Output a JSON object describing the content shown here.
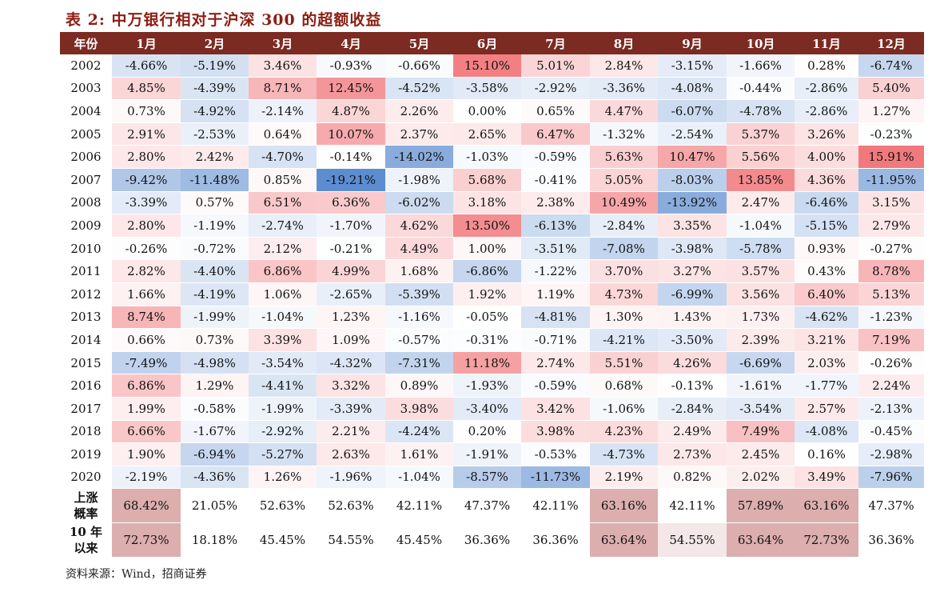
{
  "title": "表 2:  中万银行相对于沪深 300 的超额收益",
  "source": "资料来源：Wind，招商证券",
  "header": [
    "年份",
    "1月",
    "2月",
    "3月",
    "4月",
    "5月",
    "6月",
    "7月",
    "8月",
    "9月",
    "10月",
    "11月",
    "12月"
  ],
  "rows": [
    {
      "year": "2002",
      "values": [
        "-4.66%",
        "-5.19%",
        "3.46%",
        "-0.93%",
        "-0.66%",
        "15.10%",
        "5.01%",
        "2.84%",
        "-3.15%",
        "-1.66%",
        "0.28%",
        "-6.74%"
      ]
    },
    {
      "year": "2003",
      "values": [
        "4.85%",
        "-4.39%",
        "8.71%",
        "12.45%",
        "-4.52%",
        "-3.58%",
        "-2.92%",
        "-3.36%",
        "-4.08%",
        "-0.44%",
        "-2.86%",
        "5.40%"
      ]
    },
    {
      "year": "2004",
      "values": [
        "0.73%",
        "-4.92%",
        "-2.14%",
        "4.87%",
        "2.26%",
        "0.00%",
        "0.65%",
        "4.47%",
        "-6.07%",
        "-4.78%",
        "-2.86%",
        "1.27%"
      ]
    },
    {
      "year": "2005",
      "values": [
        "2.91%",
        "-2.53%",
        "0.64%",
        "10.07%",
        "2.37%",
        "2.65%",
        "6.47%",
        "-1.32%",
        "-2.54%",
        "5.37%",
        "3.26%",
        "-0.23%"
      ]
    },
    {
      "year": "2006",
      "values": [
        "2.80%",
        "2.42%",
        "-4.70%",
        "-0.14%",
        "-14.02%",
        "-1.03%",
        "-0.59%",
        "5.63%",
        "10.47%",
        "5.56%",
        "4.00%",
        "15.91%"
      ]
    },
    {
      "year": "2007",
      "values": [
        "-9.42%",
        "-11.48%",
        "0.85%",
        "-19.21%",
        "-1.98%",
        "5.68%",
        "-0.41%",
        "5.05%",
        "-8.03%",
        "13.85%",
        "4.36%",
        "-11.95%"
      ]
    },
    {
      "year": "2008",
      "values": [
        "-3.39%",
        "0.57%",
        "6.51%",
        "6.36%",
        "-6.02%",
        "3.18%",
        "2.38%",
        "10.49%",
        "-13.92%",
        "2.47%",
        "-6.46%",
        "3.15%"
      ]
    },
    {
      "year": "2009",
      "values": [
        "2.80%",
        "-1.19%",
        "-2.74%",
        "-1.70%",
        "4.62%",
        "13.50%",
        "-6.13%",
        "-2.84%",
        "3.35%",
        "-1.04%",
        "-5.15%",
        "2.79%"
      ]
    },
    {
      "year": "2010",
      "values": [
        "-0.26%",
        "-0.72%",
        "2.12%",
        "-0.21%",
        "4.49%",
        "1.00%",
        "-3.51%",
        "-7.08%",
        "-3.98%",
        "-5.78%",
        "0.93%",
        "-0.27%"
      ]
    },
    {
      "year": "2011",
      "values": [
        "2.82%",
        "-4.40%",
        "6.86%",
        "4.99%",
        "1.68%",
        "-6.86%",
        "-1.22%",
        "3.70%",
        "3.27%",
        "3.57%",
        "0.43%",
        "8.78%"
      ]
    },
    {
      "year": "2012",
      "values": [
        "1.66%",
        "-4.19%",
        "1.06%",
        "-2.65%",
        "-5.39%",
        "1.92%",
        "1.19%",
        "4.73%",
        "-6.99%",
        "3.56%",
        "6.40%",
        "5.13%"
      ]
    },
    {
      "year": "2013",
      "values": [
        "8.74%",
        "-1.99%",
        "-1.04%",
        "1.23%",
        "-1.16%",
        "-0.05%",
        "-4.81%",
        "1.30%",
        "1.43%",
        "1.73%",
        "-4.62%",
        "-1.23%"
      ]
    },
    {
      "year": "2014",
      "values": [
        "0.66%",
        "0.73%",
        "3.39%",
        "1.09%",
        "-0.57%",
        "-0.31%",
        "-0.71%",
        "-4.21%",
        "-3.50%",
        "2.39%",
        "3.21%",
        "7.19%"
      ]
    },
    {
      "year": "2015",
      "values": [
        "-7.49%",
        "-4.98%",
        "-3.54%",
        "-4.32%",
        "-7.31%",
        "11.18%",
        "2.74%",
        "5.51%",
        "4.26%",
        "-6.69%",
        "2.03%",
        "-0.26%"
      ]
    },
    {
      "year": "2016",
      "values": [
        "6.86%",
        "1.29%",
        "-4.41%",
        "3.32%",
        "0.89%",
        "-1.93%",
        "-0.59%",
        "0.68%",
        "-0.13%",
        "-1.61%",
        "-1.77%",
        "2.24%"
      ]
    },
    {
      "year": "2017",
      "values": [
        "1.99%",
        "-0.58%",
        "-1.99%",
        "-3.39%",
        "3.98%",
        "-3.40%",
        "3.42%",
        "-1.06%",
        "-2.84%",
        "-3.54%",
        "2.57%",
        "-2.13%"
      ]
    },
    {
      "year": "2018",
      "values": [
        "6.66%",
        "-1.67%",
        "-2.92%",
        "2.21%",
        "-4.24%",
        "0.20%",
        "3.98%",
        "4.23%",
        "2.49%",
        "7.49%",
        "-4.08%",
        "-0.45%"
      ]
    },
    {
      "year": "2019",
      "values": [
        "1.90%",
        "-6.94%",
        "-5.27%",
        "2.63%",
        "1.61%",
        "-1.91%",
        "-0.53%",
        "-4.73%",
        "2.73%",
        "2.45%",
        "0.16%",
        "-2.98%"
      ]
    },
    {
      "year": "2020",
      "values": [
        "-2.19%",
        "-4.36%",
        "1.26%",
        "-1.96%",
        "-1.04%",
        "-8.57%",
        "-11.73%",
        "2.19%",
        "0.82%",
        "2.02%",
        "3.49%",
        "-7.96%"
      ]
    }
  ],
  "stats": [
    {
      "label": [
        "上涨",
        "概率"
      ],
      "values": [
        "68.42%",
        "21.05%",
        "52.63%",
        "52.63%",
        "42.11%",
        "47.37%",
        "42.11%",
        "63.16%",
        "42.11%",
        "57.89%",
        "63.16%",
        "47.37%"
      ],
      "highlight": [
        true,
        false,
        false,
        false,
        false,
        false,
        false,
        true,
        false,
        true,
        true,
        false
      ]
    },
    {
      "label": [
        "10 年",
        "以来"
      ],
      "values": [
        "72.73%",
        "18.18%",
        "45.45%",
        "54.55%",
        "45.45%",
        "36.36%",
        "36.36%",
        "63.64%",
        "54.55%",
        "63.64%",
        "72.73%",
        "36.36%"
      ],
      "highlight": [
        true,
        false,
        false,
        false,
        false,
        false,
        false,
        true,
        true,
        true,
        true,
        false
      ]
    }
  ],
  "colors": {
    "header_bg": "#7b2b22",
    "title": "#8c1d12",
    "positive": "#f1787c",
    "negative": "#5b8bd0",
    "stat_highlight_strong": "#dcaeae",
    "stat_highlight_light": "#f4e7e7"
  }
}
